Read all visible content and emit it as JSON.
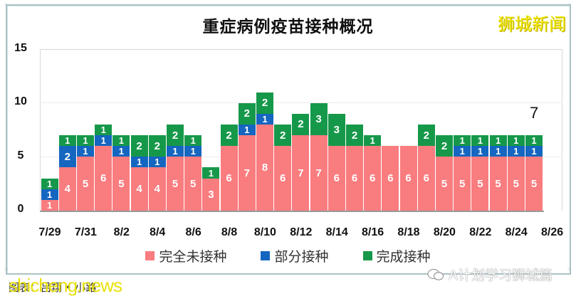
{
  "header": {
    "title": "重症病例疫苗接种概况",
    "brand": "狮城新闻"
  },
  "colors": {
    "unvaccinated": "#f97c7f",
    "partial": "#1466c0",
    "full": "#16984a"
  },
  "legend": [
    {
      "label": "完全未接种",
      "color": "#f97c7f"
    },
    {
      "label": "部分接种",
      "color": "#1466c0"
    },
    {
      "label": "完成接种",
      "color": "#16984a"
    }
  ],
  "annotation": {
    "text": "7",
    "date": "8/25"
  },
  "footer": {
    "caption": "图表：吕翔 • 小路",
    "watermark_left": "shicheng.news",
    "watermark_right": "A计划学习狮城篇"
  },
  "chart_data": {
    "type": "bar",
    "stacked": true,
    "title": "重症病例疫苗接种概况",
    "xlabel": "",
    "ylabel": "",
    "ylim": [
      0,
      15
    ],
    "yticks": [
      0,
      5,
      10,
      15
    ],
    "grid": true,
    "legend_position": "bottom",
    "categories": [
      "7/29",
      "7/30",
      "7/31",
      "8/1",
      "8/2",
      "8/3",
      "8/4",
      "8/5",
      "8/6",
      "8/7",
      "8/8",
      "8/9",
      "8/10",
      "8/11",
      "8/12",
      "8/13",
      "8/14",
      "8/15",
      "8/16",
      "8/17",
      "8/18",
      "8/19",
      "8/20",
      "8/21",
      "8/22",
      "8/23",
      "8/24",
      "8/25"
    ],
    "xtick_labels": [
      "7/29",
      "7/31",
      "8/2",
      "8/4",
      "8/6",
      "8/8",
      "8/10",
      "8/12",
      "8/14",
      "8/16",
      "8/18",
      "8/20",
      "8/22",
      "8/24",
      "8/26"
    ],
    "series": [
      {
        "name": "完全未接种",
        "color": "#f97c7f",
        "values": [
          1,
          4,
          5,
          6,
          5,
          4,
          4,
          5,
          5,
          3,
          6,
          7,
          8,
          6,
          7,
          7,
          6,
          6,
          6,
          6,
          6,
          6,
          5,
          5,
          5,
          5,
          5,
          5
        ]
      },
      {
        "name": "部分接种",
        "color": "#1466c0",
        "values": [
          1,
          2,
          1,
          1,
          1,
          1,
          1,
          1,
          1,
          0,
          0,
          1,
          1,
          0,
          0,
          0,
          0,
          0,
          0,
          0,
          0,
          0,
          0,
          1,
          1,
          1,
          1,
          1
        ]
      },
      {
        "name": "完成接种",
        "color": "#16984a",
        "values": [
          1,
          1,
          1,
          1,
          1,
          2,
          2,
          2,
          1,
          1,
          2,
          2,
          2,
          2,
          2,
          3,
          3,
          2,
          1,
          0,
          0,
          2,
          2,
          1,
          1,
          1,
          1,
          1
        ]
      }
    ],
    "annotations": [
      {
        "x": "8/25",
        "text": "7"
      }
    ]
  }
}
